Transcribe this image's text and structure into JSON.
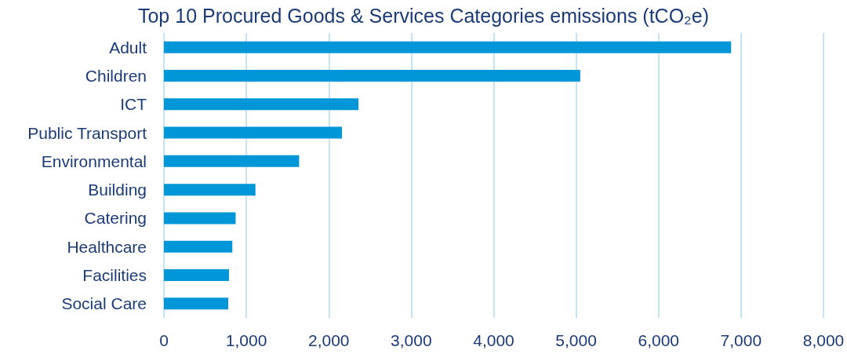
{
  "chart_data": {
    "type": "bar",
    "orientation": "horizontal",
    "title": "Top 10 Procured Goods & Services Categories emissions (tCO₂e)",
    "categories": [
      "Adult",
      "Children",
      "ICT",
      "Public Transport",
      "Environmental",
      "Building",
      "Catering",
      "Healthcare",
      "Facilities",
      "Social Care"
    ],
    "values": [
      6880,
      5050,
      2360,
      2160,
      1640,
      1110,
      870,
      830,
      790,
      780
    ],
    "color": "#0096d8",
    "xlim": [
      0,
      8000
    ],
    "xticks": [
      0,
      {
        "value": 1000,
        "label": "1,000"
      },
      {
        "value": 2000,
        "label": "2,000"
      },
      {
        "value": 3000,
        "label": "3,000"
      },
      {
        "value": 4000,
        "label": "4,000"
      },
      {
        "value": 5000,
        "label": "5,000"
      },
      {
        "value": 6000,
        "label": "6,000"
      },
      {
        "value": 7000,
        "label": "7,000"
      },
      {
        "value": 8000,
        "label": "8,000"
      }
    ],
    "grid": "x"
  }
}
